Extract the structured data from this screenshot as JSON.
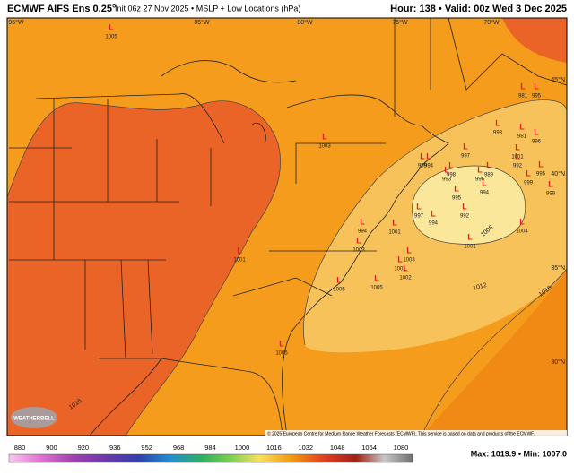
{
  "header": {
    "title": "ECMWF AIFS Ens 0.25°",
    "subtitle": "Init 06z 27 Nov 2025 • MSLP + Low Locations (hPa)",
    "valid": "Hour: 138 • Valid: 00z Wed 3 Dec 2025"
  },
  "lon_labels": [
    "95°W",
    "85°W",
    "80°W",
    "75°W",
    "70°W"
  ],
  "lat_labels": [
    "45°N",
    "40°N",
    "35°N",
    "30°N"
  ],
  "low_symbol": "L",
  "lows": [
    "1005",
    "1003",
    "1001",
    "1003",
    "1005",
    "1005",
    "1005",
    "1001",
    "1003",
    "1002",
    "1001",
    "994",
    "997",
    "994",
    "992",
    "994",
    "995",
    "1001",
    "1004",
    "999",
    "994",
    "998",
    "993",
    "996",
    "989",
    "997",
    "981",
    "993",
    "996",
    "1001",
    "992",
    "999",
    "995",
    "999",
    "981",
    "995"
  ],
  "contour_labels": [
    "1016",
    "1008",
    "1012",
    "1016"
  ],
  "colorbar_ticks": [
    "880",
    "900",
    "920",
    "936",
    "952",
    "968",
    "984",
    "1000",
    "1016",
    "1032",
    "1048",
    "1064",
    "1080"
  ],
  "copyright": "© 2025 European Centre for Medium Range Weather Forecasts (ECMWF). This service is based on data and products of the ECMWF.",
  "stats": "Max: 1019.9 • Min: 1007.0",
  "logo": "WEATHERBELL"
}
